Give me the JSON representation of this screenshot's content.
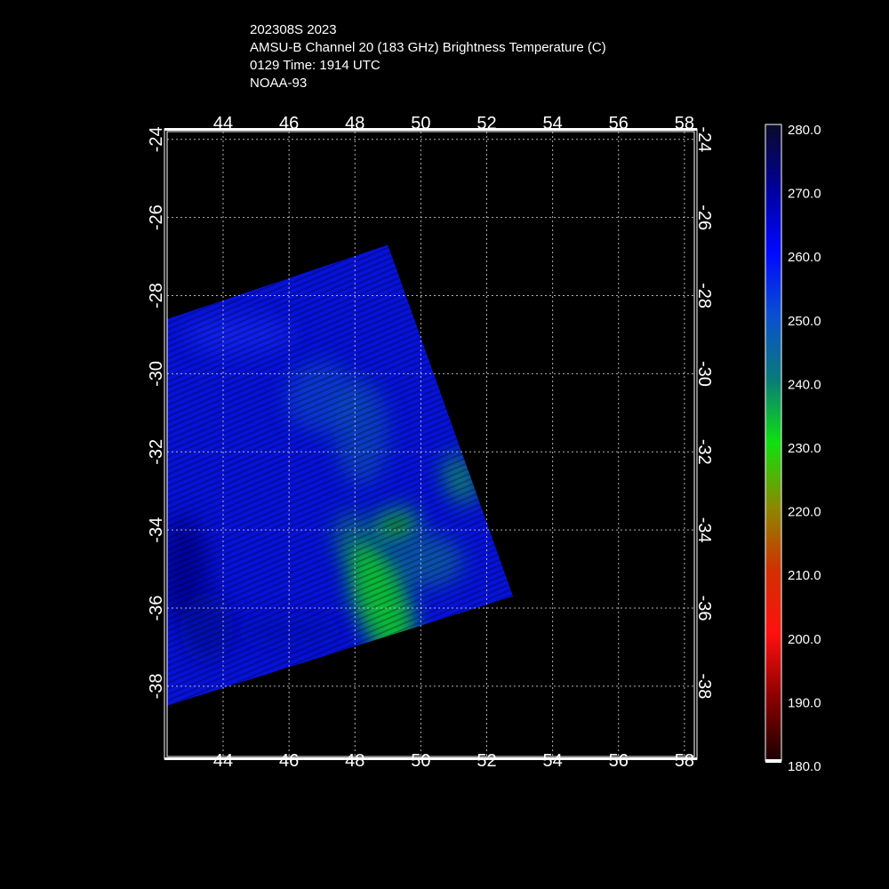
{
  "header": {
    "line1": "202308S 2023",
    "line2": "AMSU-B Channel 20 (183 GHz) Brightness Temperature (C)",
    "line3": "0129 Time: 1914 UTC",
    "line4": "NOAA-93"
  },
  "chart_data": {
    "type": "heatmap",
    "projection": "lat-lon",
    "xlim": [
      42.3,
      58.3
    ],
    "ylim": [
      -39.8,
      -23.8
    ],
    "x_ticks": [
      "44",
      "46",
      "48",
      "50",
      "52",
      "54",
      "56",
      "58"
    ],
    "y_ticks": [
      "-24",
      "-26",
      "-28",
      "-30",
      "-32",
      "-34",
      "-36",
      "-38"
    ],
    "x_tick_values": [
      44,
      46,
      48,
      50,
      52,
      54,
      56,
      58
    ],
    "y_tick_values": [
      -24,
      -26,
      -28,
      -30,
      -32,
      -34,
      -36,
      -38
    ],
    "grid": true,
    "swath_corners_lonlat": [
      [
        42.3,
        -28.6
      ],
      [
        49.0,
        -26.7
      ],
      [
        52.8,
        -35.7
      ],
      [
        42.3,
        -38.5
      ]
    ],
    "colorbar": {
      "labels": [
        "280.0",
        "270.0",
        "260.0",
        "250.0",
        "240.0",
        "230.0",
        "220.0",
        "210.0",
        "200.0",
        "190.0",
        "180.0"
      ],
      "values": [
        280,
        270,
        260,
        250,
        240,
        230,
        220,
        210,
        200,
        190,
        180
      ],
      "colors": [
        "#0a0a28",
        "#00009a",
        "#0008ff",
        "#0a4fd0",
        "#0a7a7a",
        "#10e010",
        "#8a8a00",
        "#d03000",
        "#ff1010",
        "#8a0000",
        "#1a0000"
      ]
    },
    "features": [
      {
        "name": "background swath",
        "value": 258
      },
      {
        "name": "cold green band",
        "lon": 48.8,
        "lat": -35.8,
        "value": 232
      },
      {
        "name": "green cell",
        "lon": 49.2,
        "lat": -33.9,
        "value": 236
      },
      {
        "name": "green edge",
        "lon": 51.2,
        "lat": -32.7,
        "value": 237
      }
    ]
  }
}
